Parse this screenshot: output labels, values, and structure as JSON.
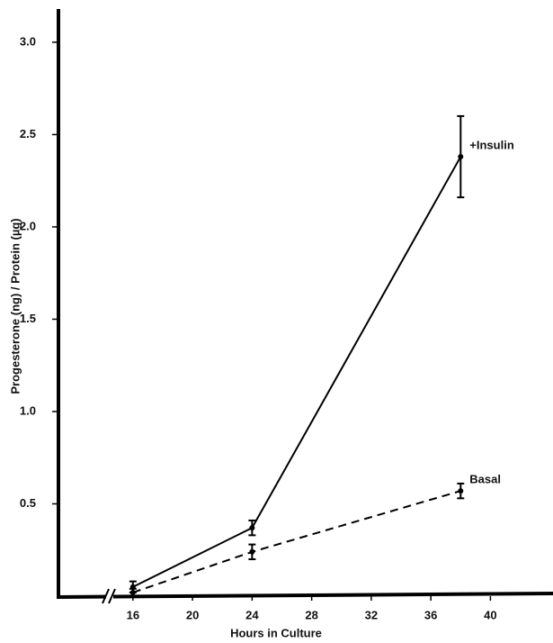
{
  "chart_data": {
    "type": "line",
    "x_label": "Hours in Culture",
    "y_label": "Progesterone (ng) / Protein (µg)",
    "xlim": [
      11,
      44.2
    ],
    "ylim": [
      0,
      3.18
    ],
    "xticks": [
      16,
      20,
      24,
      28,
      32,
      36,
      40
    ],
    "yticks": [
      0.5,
      {
        "value": 1,
        "label": "1.0"
      },
      1.5,
      {
        "value": 2,
        "label": "2.0"
      },
      2.5,
      {
        "value": 3,
        "label": "3.0"
      }
    ],
    "x": [
      16,
      24,
      38
    ],
    "series": [
      {
        "name": "+Insulin",
        "color": "#000000",
        "dash": "solid",
        "values": [
          0.05,
          0.37,
          2.38
        ],
        "errors": [
          0.03,
          0.04,
          0.22
        ]
      },
      {
        "name": "Basal",
        "color": "#000000",
        "dash": "dashed",
        "values": [
          0.02,
          0.24,
          0.57
        ],
        "errors": [
          0.02,
          0.04,
          0.04
        ]
      }
    ]
  }
}
